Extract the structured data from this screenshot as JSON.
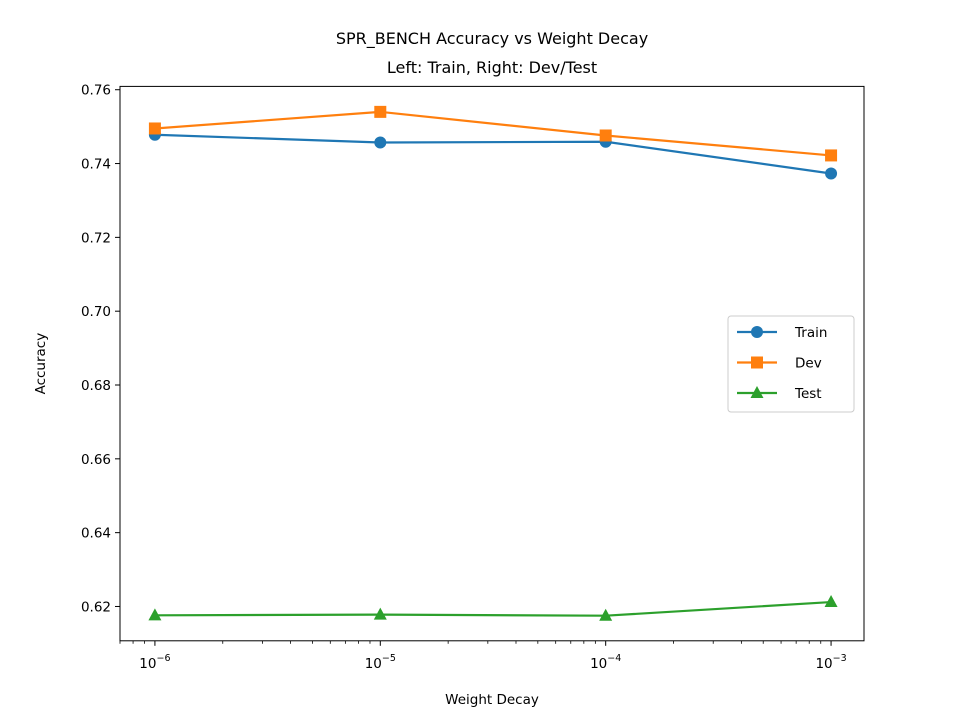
{
  "chart_data": {
    "type": "line",
    "title": "SPR_BENCH Accuracy vs Weight Decay",
    "subtitle": "Left: Train, Right: Dev/Test",
    "xlabel": "Weight Decay",
    "ylabel": "Accuracy",
    "xscale": "log",
    "x": [
      1e-06,
      1e-05,
      0.0001,
      0.001
    ],
    "x_tick_labels": [
      {
        "base": "10",
        "exp": "−6"
      },
      {
        "base": "10",
        "exp": "−5"
      },
      {
        "base": "10",
        "exp": "−4"
      },
      {
        "base": "10",
        "exp": "−3"
      }
    ],
    "y_ticks": [
      0.62,
      0.64,
      0.66,
      0.68,
      0.7,
      0.72,
      0.74,
      0.76
    ],
    "y_tick_labels": [
      "0.62",
      "0.64",
      "0.66",
      "0.68",
      "0.70",
      "0.72",
      "0.74",
      "0.76"
    ],
    "xlim": [
      7e-07,
      0.0014
    ],
    "ylim": [
      0.6107,
      0.7609
    ],
    "grid": false,
    "legend_position": "center-right",
    "series": [
      {
        "name": "Train",
        "color": "#1f77b4",
        "marker": "circle",
        "values": [
          0.7478,
          0.7457,
          0.7459,
          0.7373
        ]
      },
      {
        "name": "Dev",
        "color": "#ff7f0e",
        "marker": "square",
        "values": [
          0.7495,
          0.754,
          0.7476,
          0.7422
        ]
      },
      {
        "name": "Test",
        "color": "#2ca02c",
        "marker": "triangle",
        "values": [
          0.6176,
          0.6178,
          0.6175,
          0.6212
        ]
      }
    ]
  }
}
